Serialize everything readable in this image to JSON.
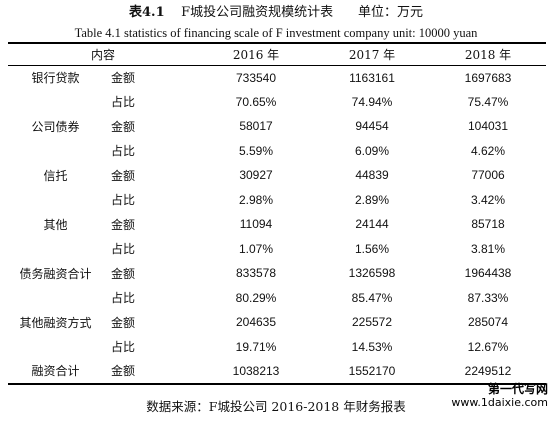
{
  "title_cn": {
    "num": "表4.1",
    "main": "F城投公司融资规模统计表",
    "unit": "单位：万元"
  },
  "title_en": "Table 4.1 statistics of financing scale of F investment company unit: 10000 yuan",
  "table": {
    "headers": [
      "内容",
      "2016 年",
      "2017 年",
      "2018 年"
    ],
    "rows": [
      {
        "category": "银行贷款",
        "metric": "金额",
        "values": [
          "733540",
          "1163161",
          "1697683"
        ]
      },
      {
        "category": "",
        "metric": "占比",
        "values": [
          "70.65%",
          "74.94%",
          "75.47%"
        ]
      },
      {
        "category": "公司债券",
        "metric": "金额",
        "values": [
          "58017",
          "94454",
          "104031"
        ]
      },
      {
        "category": "",
        "metric": "占比",
        "values": [
          "5.59%",
          "6.09%",
          "4.62%"
        ]
      },
      {
        "category": "信托",
        "metric": "金额",
        "values": [
          "30927",
          "44839",
          "77006"
        ]
      },
      {
        "category": "",
        "metric": "占比",
        "values": [
          "2.98%",
          "2.89%",
          "3.42%"
        ]
      },
      {
        "category": "其他",
        "metric": "金额",
        "values": [
          "11094",
          "24144",
          "85718"
        ]
      },
      {
        "category": "",
        "metric": "占比",
        "values": [
          "1.07%",
          "1.56%",
          "3.81%"
        ]
      },
      {
        "category": "债务融资合计",
        "metric": "金额",
        "values": [
          "833578",
          "1326598",
          "1964438"
        ]
      },
      {
        "category": "",
        "metric": "占比",
        "values": [
          "80.29%",
          "85.47%",
          "87.33%"
        ]
      },
      {
        "category": "其他融资方式",
        "metric": "金额",
        "values": [
          "204635",
          "225572",
          "285074"
        ]
      },
      {
        "category": "",
        "metric": "占比",
        "values": [
          "19.71%",
          "14.53%",
          "12.67%"
        ]
      },
      {
        "category": "融资合计",
        "metric": "金额",
        "values": [
          "1038213",
          "1552170",
          "2249512"
        ]
      }
    ]
  },
  "source": "数据来源：F城投公司 2016-2018 年财务报表",
  "watermark": {
    "line1": "第一代写网",
    "line2": "www.1daixie.com"
  }
}
